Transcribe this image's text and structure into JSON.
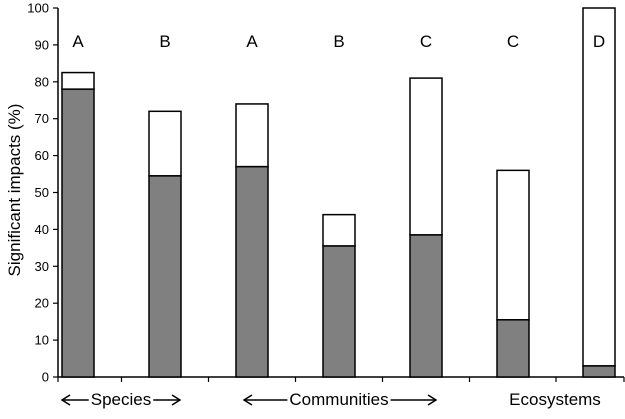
{
  "chart_data": {
    "type": "bar",
    "stacked": true,
    "ylabel": "Significant impacts (%)",
    "ylim": [
      0,
      100
    ],
    "yticks": [
      0,
      10,
      20,
      30,
      40,
      50,
      60,
      70,
      80,
      90,
      100
    ],
    "grid": false,
    "legend": "none",
    "bars": [
      {
        "letter": "A",
        "lower": 78,
        "total": 82.5
      },
      {
        "letter": "B",
        "lower": 54.5,
        "total": 72
      },
      {
        "letter": "A",
        "lower": 57,
        "total": 74
      },
      {
        "letter": "B",
        "lower": 35.5,
        "total": 44
      },
      {
        "letter": "C",
        "lower": 38.5,
        "total": 81
      },
      {
        "letter": "C",
        "lower": 15.5,
        "total": 56
      },
      {
        "letter": "D",
        "lower": 3,
        "total": 100
      }
    ],
    "groups": [
      {
        "label": "Species",
        "arrows": true
      },
      {
        "label": "Communities",
        "arrows": true
      },
      {
        "label": "Ecosystems",
        "arrows": false
      }
    ],
    "colors": {
      "lower": "#808080",
      "upper": "#ffffff",
      "stroke": "#000000"
    }
  }
}
